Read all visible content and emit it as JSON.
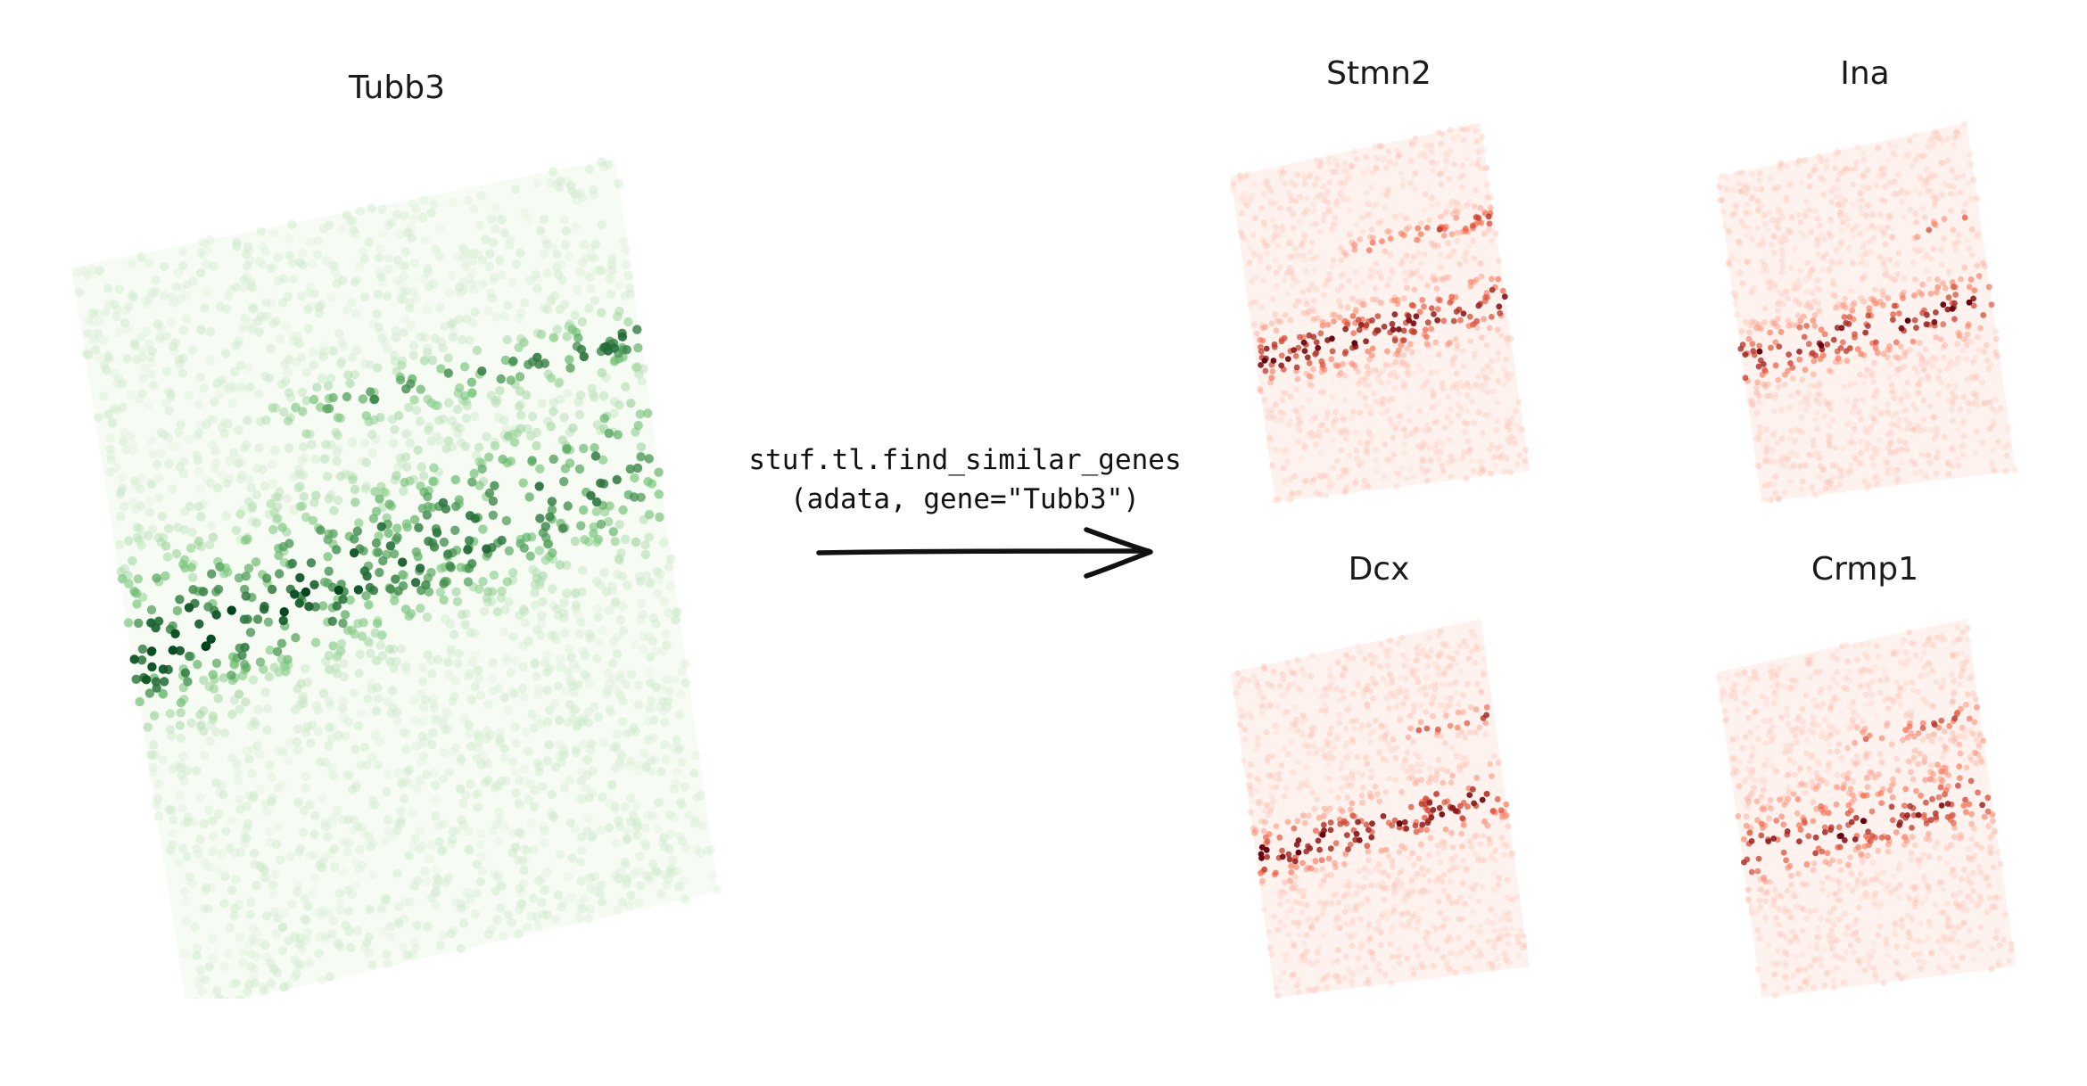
{
  "query_gene": {
    "title": "Tubb3",
    "colormap": "Greens",
    "colors": {
      "low": "#eef8ea",
      "mid": "#74c476",
      "high": "#00441b"
    }
  },
  "function_call": {
    "line1": "stuf.tl.find_similar_genes",
    "line2": "(adata, gene=\"Tubb3\")"
  },
  "similar_genes": [
    {
      "title": "Stmn2",
      "colormap": "Reds"
    },
    {
      "title": "Ina",
      "colormap": "Reds"
    },
    {
      "title": "Dcx",
      "colormap": "Reds"
    },
    {
      "title": "Crmp1",
      "colormap": "Reds"
    }
  ],
  "similar_colors": {
    "low": "#fde8e0",
    "mid": "#fb6a4a",
    "high": "#67000d"
  },
  "arrow": {
    "icon": "right-arrow-icon",
    "color": "#111111"
  }
}
